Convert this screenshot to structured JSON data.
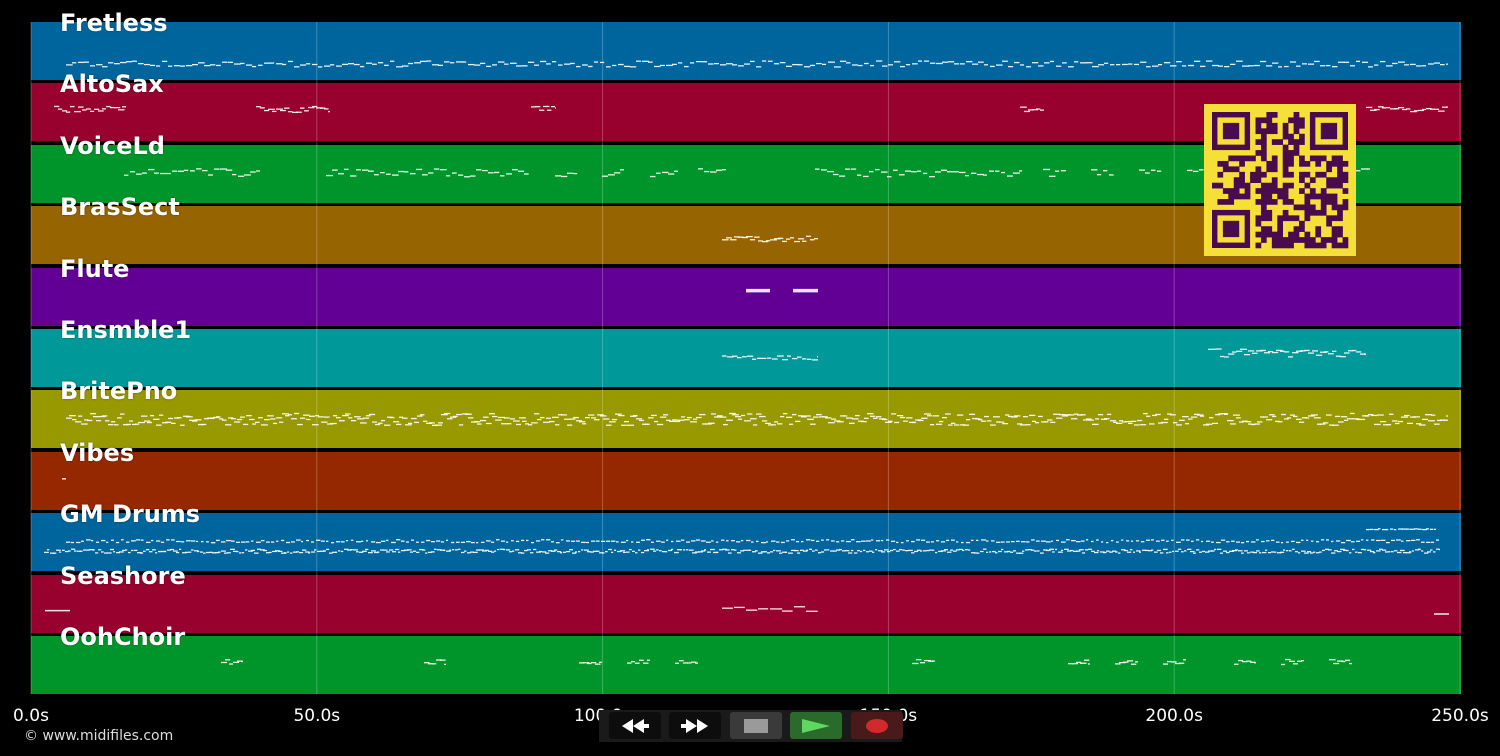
{
  "timeline": {
    "duration_seconds": 250,
    "ticks": [
      {
        "value": 0,
        "label": "0.0s"
      },
      {
        "value": 50,
        "label": "50.0s"
      },
      {
        "value": 100,
        "label": "100.0s"
      },
      {
        "value": 150,
        "label": "150.0s"
      },
      {
        "value": 200,
        "label": "200.0s"
      },
      {
        "value": 250,
        "label": "250.0s"
      }
    ]
  },
  "tracks": [
    {
      "name": "Fretless",
      "color": "#00659c"
    },
    {
      "name": "AltoSax",
      "color": "#98002e"
    },
    {
      "name": "VoiceLd",
      "color": "#00952a"
    },
    {
      "name": "BrasSect",
      "color": "#966400"
    },
    {
      "name": "Flute",
      "color": "#620096"
    },
    {
      "name": "Ensmble1",
      "color": "#009898"
    },
    {
      "name": "BritePno",
      "color": "#989800"
    },
    {
      "name": "Vibes",
      "color": "#962800"
    },
    {
      "name": "GM Drums",
      "color": "#00659c"
    },
    {
      "name": "Seashore",
      "color": "#98002e"
    },
    {
      "name": "OohChoir",
      "color": "#00952a"
    }
  ],
  "credit": "© www.midifiles.com",
  "transport": {
    "rewind_icon": "rewind-icon",
    "fast_forward_icon": "fast-forward-icon",
    "stop_icon": "stop-icon",
    "play_icon": "play-icon",
    "record_icon": "record-icon"
  },
  "qr_code": {
    "color_fg": "#4a0a4e",
    "color_bg": "#f5e03a"
  }
}
